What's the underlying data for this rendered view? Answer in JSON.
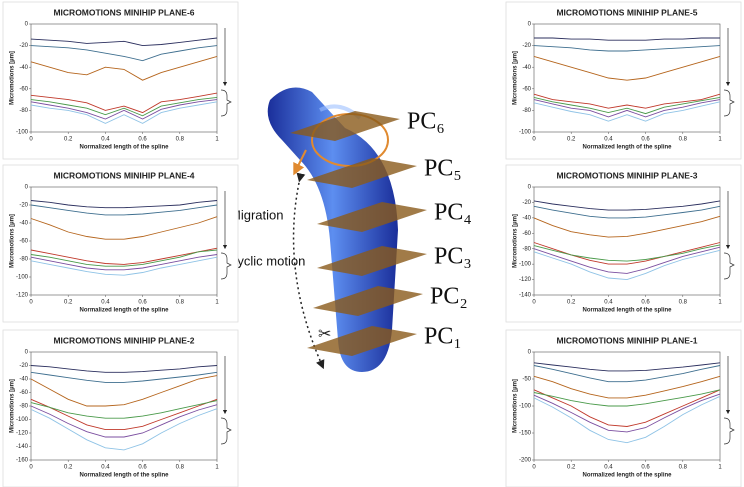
{
  "chart_data": [
    {
      "type": "line",
      "title": "MICROMOTIONS MINIHIP PLANE-6",
      "x_label": "Normalized length of the spline",
      "y_label": "Micromotions [µm]",
      "x": [
        0,
        0.1,
        0.2,
        0.3,
        0.4,
        0.5,
        0.6,
        0.7,
        0.8,
        0.9,
        1
      ],
      "xlim": [
        0,
        1
      ],
      "xticks": [
        0,
        0.2,
        0.4,
        0.6,
        0.8,
        1
      ],
      "ylim": [
        -100,
        0
      ],
      "yticks": [
        0,
        -20,
        -40,
        -60,
        -80,
        -100
      ],
      "series": [
        {
          "color": "#2b2f5e",
          "values": [
            -14,
            -15,
            -16,
            -18,
            -17,
            -16,
            -20,
            -19,
            -17,
            -15,
            -13
          ]
        },
        {
          "color": "#3f6f8f",
          "values": [
            -20,
            -21,
            -22,
            -24,
            -27,
            -30,
            -34,
            -28,
            -25,
            -22,
            -20
          ]
        },
        {
          "color": "#b5651d",
          "values": [
            -35,
            -40,
            -45,
            -47,
            -40,
            -42,
            -52,
            -45,
            -40,
            -35,
            -30
          ]
        },
        {
          "color": "#c0392b",
          "values": [
            -66,
            -68,
            -70,
            -73,
            -80,
            -76,
            -82,
            -72,
            -70,
            -67,
            -64
          ]
        },
        {
          "color": "#4a9a4a",
          "values": [
            -70,
            -72,
            -75,
            -78,
            -84,
            -78,
            -85,
            -76,
            -73,
            -70,
            -68
          ]
        },
        {
          "color": "#7b4fa0",
          "values": [
            -72,
            -75,
            -78,
            -82,
            -88,
            -80,
            -88,
            -79,
            -75,
            -72,
            -70
          ]
        },
        {
          "color": "#8fc3e6",
          "values": [
            -75,
            -78,
            -80,
            -84,
            -92,
            -84,
            -92,
            -82,
            -78,
            -75,
            -72
          ]
        }
      ]
    },
    {
      "type": "line",
      "title": "MICROMOTIONS MINIHIP PLANE-5",
      "x_label": "Normalized length of the spline",
      "y_label": "Micromotions [µm]",
      "x": [
        0,
        0.1,
        0.2,
        0.3,
        0.4,
        0.5,
        0.6,
        0.7,
        0.8,
        0.9,
        1
      ],
      "xlim": [
        0,
        1
      ],
      "xticks": [
        0,
        0.2,
        0.4,
        0.6,
        0.8,
        1
      ],
      "ylim": [
        -100,
        0
      ],
      "yticks": [
        0,
        -20,
        -40,
        -60,
        -80,
        -100
      ],
      "series": [
        {
          "color": "#2b2f5e",
          "values": [
            -13,
            -13,
            -14,
            -14,
            -15,
            -15,
            -15,
            -14,
            -14,
            -13,
            -13
          ]
        },
        {
          "color": "#3f6f8f",
          "values": [
            -20,
            -21,
            -22,
            -24,
            -25,
            -25,
            -24,
            -23,
            -22,
            -21,
            -20
          ]
        },
        {
          "color": "#b5651d",
          "values": [
            -30,
            -35,
            -40,
            -45,
            -50,
            -52,
            -50,
            -45,
            -40,
            -35,
            -30
          ]
        },
        {
          "color": "#c0392b",
          "values": [
            -65,
            -70,
            -72,
            -74,
            -78,
            -75,
            -78,
            -74,
            -72,
            -70,
            -65
          ]
        },
        {
          "color": "#4a9a4a",
          "values": [
            -68,
            -72,
            -75,
            -78,
            -82,
            -78,
            -83,
            -77,
            -74,
            -71,
            -68
          ]
        },
        {
          "color": "#7b4fa0",
          "values": [
            -70,
            -74,
            -78,
            -80,
            -86,
            -80,
            -86,
            -80,
            -77,
            -73,
            -70
          ]
        },
        {
          "color": "#8fc3e6",
          "values": [
            -73,
            -77,
            -81,
            -84,
            -90,
            -84,
            -90,
            -83,
            -80,
            -76,
            -72
          ]
        }
      ]
    },
    {
      "type": "line",
      "title": "MICROMOTIONS MINIHIP PLANE-4",
      "x_label": "Normalized length of the spline",
      "y_label": "Micromotions [µm]",
      "x": [
        0,
        0.1,
        0.2,
        0.3,
        0.4,
        0.5,
        0.6,
        0.7,
        0.8,
        0.9,
        1
      ],
      "xlim": [
        0,
        1
      ],
      "xticks": [
        0,
        0.2,
        0.4,
        0.6,
        0.8,
        1
      ],
      "ylim": [
        -120,
        0
      ],
      "yticks": [
        0,
        -20,
        -40,
        -60,
        -80,
        -100,
        -120
      ],
      "series": [
        {
          "color": "#2b2f5e",
          "values": [
            -15,
            -17,
            -20,
            -22,
            -23,
            -23,
            -22,
            -21,
            -20,
            -17,
            -15
          ]
        },
        {
          "color": "#3f6f8f",
          "values": [
            -20,
            -23,
            -26,
            -29,
            -31,
            -31,
            -30,
            -28,
            -26,
            -23,
            -20
          ]
        },
        {
          "color": "#b5651d",
          "values": [
            -35,
            -42,
            -50,
            -55,
            -58,
            -58,
            -55,
            -50,
            -45,
            -40,
            -33
          ]
        },
        {
          "color": "#c0392b",
          "values": [
            -70,
            -74,
            -78,
            -82,
            -85,
            -86,
            -84,
            -80,
            -76,
            -72,
            -68
          ]
        },
        {
          "color": "#4a9a4a",
          "values": [
            -75,
            -78,
            -82,
            -86,
            -88,
            -88,
            -86,
            -82,
            -78,
            -72,
            -70
          ]
        },
        {
          "color": "#7b4fa0",
          "values": [
            -78,
            -82,
            -86,
            -90,
            -92,
            -92,
            -90,
            -86,
            -82,
            -78,
            -75
          ]
        },
        {
          "color": "#8fc3e6",
          "values": [
            -82,
            -86,
            -90,
            -94,
            -97,
            -98,
            -95,
            -90,
            -86,
            -82,
            -78
          ]
        }
      ]
    },
    {
      "type": "line",
      "title": "MICROMOTIONS MINIHIP PLANE-3",
      "x_label": "Normalized length of the spline",
      "y_label": "Micromotions [µm]",
      "x": [
        0,
        0.1,
        0.2,
        0.3,
        0.4,
        0.5,
        0.6,
        0.7,
        0.8,
        0.9,
        1
      ],
      "xlim": [
        0,
        1
      ],
      "xticks": [
        0,
        0.2,
        0.4,
        0.6,
        0.8,
        1
      ],
      "ylim": [
        -140,
        0
      ],
      "yticks": [
        0,
        -20,
        -40,
        -60,
        -80,
        -100,
        -120,
        -140
      ],
      "series": [
        {
          "color": "#2b2f5e",
          "values": [
            -18,
            -22,
            -25,
            -28,
            -30,
            -30,
            -29,
            -27,
            -25,
            -22,
            -18
          ]
        },
        {
          "color": "#3f6f8f",
          "values": [
            -25,
            -30,
            -34,
            -38,
            -40,
            -40,
            -39,
            -36,
            -33,
            -30,
            -25
          ]
        },
        {
          "color": "#b5651d",
          "values": [
            -40,
            -50,
            -58,
            -62,
            -65,
            -64,
            -60,
            -55,
            -50,
            -45,
            -38
          ]
        },
        {
          "color": "#c0392b",
          "values": [
            -72,
            -80,
            -88,
            -95,
            -100,
            -100,
            -96,
            -90,
            -84,
            -78,
            -72
          ]
        },
        {
          "color": "#4a9a4a",
          "values": [
            -76,
            -82,
            -88,
            -92,
            -95,
            -96,
            -94,
            -90,
            -86,
            -80,
            -75
          ]
        },
        {
          "color": "#7b4fa0",
          "values": [
            -80,
            -88,
            -96,
            -104,
            -110,
            -112,
            -106,
            -98,
            -90,
            -84,
            -78
          ]
        },
        {
          "color": "#8fc3e6",
          "values": [
            -84,
            -92,
            -100,
            -110,
            -118,
            -120,
            -112,
            -102,
            -94,
            -88,
            -82
          ]
        }
      ]
    },
    {
      "type": "line",
      "title": "MICROMOTIONS MINIHIP PLANE-2",
      "x_label": "Normalized length of the spline",
      "y_label": "Micromotions [µm]",
      "x": [
        0,
        0.1,
        0.2,
        0.3,
        0.4,
        0.5,
        0.6,
        0.7,
        0.8,
        0.9,
        1
      ],
      "xlim": [
        0,
        1
      ],
      "xticks": [
        0,
        0.2,
        0.4,
        0.6,
        0.8,
        1
      ],
      "ylim": [
        -160,
        0
      ],
      "yticks": [
        0,
        -20,
        -40,
        -60,
        -80,
        -100,
        -120,
        -140,
        -160
      ],
      "series": [
        {
          "color": "#2b2f5e",
          "values": [
            -20,
            -22,
            -25,
            -28,
            -30,
            -30,
            -29,
            -27,
            -25,
            -22,
            -20
          ]
        },
        {
          "color": "#3f6f8f",
          "values": [
            -30,
            -34,
            -38,
            -42,
            -45,
            -45,
            -43,
            -40,
            -37,
            -34,
            -30
          ]
        },
        {
          "color": "#b5651d",
          "values": [
            -40,
            -55,
            -70,
            -80,
            -80,
            -78,
            -70,
            -60,
            -50,
            -40,
            -35
          ]
        },
        {
          "color": "#c0392b",
          "values": [
            -70,
            -82,
            -95,
            -108,
            -115,
            -115,
            -110,
            -100,
            -90,
            -80,
            -70
          ]
        },
        {
          "color": "#4a9a4a",
          "values": [
            -75,
            -82,
            -90,
            -95,
            -98,
            -98,
            -95,
            -90,
            -84,
            -78,
            -72
          ]
        },
        {
          "color": "#7b4fa0",
          "values": [
            -80,
            -92,
            -106,
            -118,
            -126,
            -126,
            -120,
            -108,
            -96,
            -86,
            -78
          ]
        },
        {
          "color": "#8fc3e6",
          "values": [
            -85,
            -98,
            -114,
            -130,
            -142,
            -145,
            -136,
            -120,
            -106,
            -94,
            -84
          ]
        }
      ]
    },
    {
      "type": "line",
      "title": "MICROMOTIONS MINIHIP PLANE-1",
      "x_label": "Normalized length of the spline",
      "y_label": "Micromotions [µm]",
      "x": [
        0,
        0.1,
        0.2,
        0.3,
        0.4,
        0.5,
        0.6,
        0.7,
        0.8,
        0.9,
        1
      ],
      "xlim": [
        0,
        1
      ],
      "xticks": [
        0,
        0.2,
        0.4,
        0.6,
        0.8,
        1
      ],
      "ylim": [
        -200,
        0
      ],
      "yticks": [
        0,
        -50,
        -100,
        -150,
        -200
      ],
      "series": [
        {
          "color": "#2b2f5e",
          "values": [
            -20,
            -24,
            -28,
            -32,
            -35,
            -35,
            -34,
            -31,
            -28,
            -24,
            -20
          ]
        },
        {
          "color": "#3f6f8f",
          "values": [
            -25,
            -32,
            -40,
            -48,
            -55,
            -55,
            -52,
            -46,
            -40,
            -32,
            -25
          ]
        },
        {
          "color": "#b5651d",
          "values": [
            -45,
            -55,
            -68,
            -78,
            -85,
            -85,
            -80,
            -72,
            -64,
            -55,
            -45
          ]
        },
        {
          "color": "#c0392b",
          "values": [
            -70,
            -85,
            -100,
            -120,
            -135,
            -138,
            -130,
            -115,
            -100,
            -85,
            -70
          ]
        },
        {
          "color": "#4a9a4a",
          "values": [
            -75,
            -82,
            -90,
            -96,
            -100,
            -100,
            -96,
            -90,
            -84,
            -78,
            -70
          ]
        },
        {
          "color": "#7b4fa0",
          "values": [
            -80,
            -95,
            -112,
            -130,
            -145,
            -148,
            -140,
            -122,
            -105,
            -90,
            -78
          ]
        },
        {
          "color": "#8fc3e6",
          "values": [
            -85,
            -102,
            -122,
            -145,
            -162,
            -168,
            -158,
            -138,
            -116,
            -98,
            -82
          ]
        }
      ]
    }
  ],
  "diagram": {
    "annotations": [
      "Migration",
      "Cyclic motion"
    ],
    "planes": [
      "PC₆",
      "PC₅",
      "PC₄",
      "PC₃",
      "PC₂",
      "PC₁"
    ]
  }
}
